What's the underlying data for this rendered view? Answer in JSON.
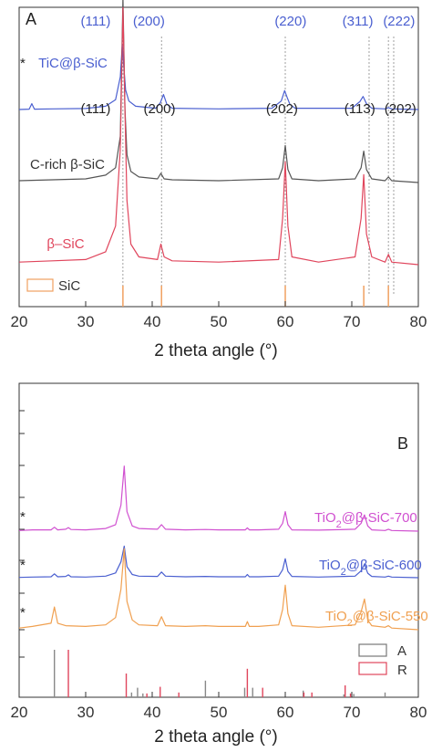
{
  "chart_data": [
    {
      "type": "line",
      "panel": "A",
      "xlabel": "2 theta angle (°)",
      "xlim": [
        20,
        80
      ],
      "xticks": [
        20,
        30,
        40,
        50,
        60,
        70,
        80
      ],
      "grid": false,
      "series": [
        {
          "name": "TiC@β-SiC",
          "color": "#4a5fd0",
          "marker": "*",
          "baseline": 0.8,
          "scale": 0.55,
          "x": [
            20,
            21.5,
            21.9,
            22.3,
            25,
            30,
            33,
            34.5,
            35.2,
            35.5,
            35.7,
            36.0,
            36.5,
            37.5,
            40.5,
            41.2,
            41.7,
            42.2,
            43,
            50,
            58,
            59.4,
            59.9,
            60.3,
            60.7,
            61.5,
            70,
            71.2,
            71.7,
            72.2,
            73,
            75,
            75.5,
            76,
            80
          ],
          "y": [
            0,
            0.005,
            0.09,
            0.005,
            0.01,
            0.015,
            0.05,
            0.15,
            0.5,
            1.0,
            0.7,
            0.3,
            0.13,
            0.05,
            0.02,
            0.1,
            0.23,
            0.08,
            0.02,
            0.01,
            0.02,
            0.13,
            0.29,
            0.18,
            0.08,
            0.02,
            0.02,
            0.12,
            0.2,
            0.09,
            0.02,
            0.01,
            0.03,
            0.01,
            0
          ]
        },
        {
          "name": "C-rich β-SiC",
          "color": "#555555",
          "baseline": 0.0,
          "scale": 2.2,
          "x": [
            20,
            25,
            30,
            33,
            34.5,
            35.2,
            35.6,
            35.9,
            36.2,
            36.8,
            38,
            40.8,
            41.3,
            41.8,
            43,
            50,
            59,
            59.6,
            60.0,
            60.4,
            61,
            65,
            70.5,
            71.4,
            71.8,
            72.2,
            73,
            75,
            75.5,
            76,
            80
          ],
          "y": [
            0.01,
            0.015,
            0.02,
            0.04,
            0.08,
            0.25,
            1.0,
            0.4,
            0.15,
            0.06,
            0.03,
            0.02,
            0.05,
            0.02,
            0.015,
            0.01,
            0.02,
            0.08,
            0.2,
            0.07,
            0.02,
            0.01,
            0.02,
            0.08,
            0.17,
            0.07,
            0.02,
            0.01,
            0.03,
            0.01,
            0
          ]
        },
        {
          "name": "β–SiC",
          "color": "#e0455c",
          "baseline": 0.0,
          "scale": 1.15,
          "x": [
            20,
            25,
            30,
            33,
            34.5,
            35.2,
            35.6,
            35.9,
            36.2,
            36.8,
            38,
            40.8,
            41.3,
            41.8,
            43,
            50,
            59,
            59.6,
            60.0,
            60.4,
            61,
            65,
            70.5,
            71.4,
            71.8,
            72.2,
            73,
            75,
            75.5,
            76,
            80
          ],
          "y": [
            0.01,
            0.015,
            0.02,
            0.05,
            0.15,
            0.45,
            1.0,
            0.6,
            0.25,
            0.08,
            0.03,
            0.02,
            0.08,
            0.03,
            0.015,
            0.01,
            0.02,
            0.18,
            0.4,
            0.15,
            0.03,
            0.01,
            0.03,
            0.18,
            0.35,
            0.12,
            0.03,
            0.01,
            0.04,
            0.01,
            0
          ]
        }
      ],
      "reference_sticks": {
        "name": "SiC",
        "color": "#f0a060",
        "x": [
          35.6,
          41.4,
          60.0,
          71.8,
          75.5
        ]
      },
      "guide_lines_x": [
        35.6,
        41.4,
        60.0,
        72.6,
        75.5,
        76.3
      ],
      "annotations": [
        {
          "text": "(111)",
          "x": 31.5,
          "row": "upper",
          "color": "#4a5fd0"
        },
        {
          "text": "(200)",
          "x": 39.5,
          "row": "upper",
          "color": "#4a5fd0"
        },
        {
          "text": "(220)",
          "x": 60.8,
          "row": "upper",
          "color": "#4a5fd0"
        },
        {
          "text": "(311)",
          "x": 70.9,
          "row": "upper",
          "color": "#4a5fd0"
        },
        {
          "text": "(222)",
          "x": 77.1,
          "row": "upper",
          "color": "#4a5fd0"
        },
        {
          "text": "(111)",
          "x": 31.5,
          "row": "lower",
          "color": "#222222"
        },
        {
          "text": "(200)",
          "x": 41.1,
          "row": "lower",
          "color": "#222222"
        },
        {
          "text": "(202)",
          "x": 59.5,
          "row": "lower",
          "color": "#222222"
        },
        {
          "text": "(113)",
          "x": 71.2,
          "row": "lower",
          "color": "#222222"
        },
        {
          "text": "(202)",
          "x": 77.3,
          "row": "lower",
          "color": "#222222"
        }
      ],
      "legend": {
        "label": "SiC",
        "position": "bottom-left"
      }
    },
    {
      "type": "line",
      "panel": "B",
      "xlabel": "2 theta angle (°)",
      "xlim": [
        20,
        80
      ],
      "xticks": [
        20,
        30,
        40,
        50,
        60,
        70,
        80
      ],
      "grid": false,
      "series": [
        {
          "name": "TiO2@β-SiC-700",
          "name_main": "TiO",
          "name_sub": "2",
          "name_rest": "@β-SiC-700",
          "color": "#d050d0",
          "marker": "*",
          "baseline": 0.58,
          "scale": 0.46,
          "x": [
            20,
            22,
            24.8,
            25.3,
            25.8,
            27,
            27.4,
            27.8,
            30,
            33,
            34.5,
            35.3,
            35.8,
            36.2,
            37,
            38,
            40.8,
            41.4,
            42,
            45,
            48,
            50,
            54,
            54.3,
            54.6,
            56,
            59,
            59.6,
            60.0,
            60.4,
            61,
            65,
            70.5,
            71.4,
            71.9,
            72.4,
            73,
            75,
            75.5,
            76,
            80
          ],
          "y": [
            0.01,
            0.02,
            0.02,
            0.06,
            0.02,
            0.03,
            0.055,
            0.025,
            0.02,
            0.04,
            0.1,
            0.4,
            1.0,
            0.3,
            0.08,
            0.04,
            0.03,
            0.1,
            0.03,
            0.02,
            0.025,
            0.02,
            0.02,
            0.05,
            0.02,
            0.02,
            0.03,
            0.12,
            0.3,
            0.1,
            0.02,
            0.015,
            0.03,
            0.12,
            0.25,
            0.08,
            0.02,
            0.01,
            0.03,
            0.01,
            0
          ]
        },
        {
          "name": "TiO2@β-SiC-600",
          "name_main": "TiO",
          "name_sub": "2",
          "name_rest": "@β-SiC-600",
          "color": "#4a5fd0",
          "marker": "*",
          "baseline": 0.26,
          "scale": 0.21,
          "x": [
            20,
            22,
            24.8,
            25.3,
            25.8,
            27,
            27.4,
            27.8,
            30,
            33,
            34.5,
            35.3,
            35.8,
            36.2,
            37,
            38,
            40.8,
            41.4,
            42,
            45,
            48,
            50,
            54,
            54.3,
            54.6,
            56,
            59,
            59.6,
            60.0,
            60.4,
            61,
            65,
            70.5,
            71.4,
            71.9,
            72.4,
            73,
            75,
            75.5,
            76,
            80
          ],
          "y": [
            0.01,
            0.02,
            0.03,
            0.12,
            0.03,
            0.04,
            0.09,
            0.03,
            0.02,
            0.05,
            0.15,
            0.5,
            1.0,
            0.35,
            0.1,
            0.05,
            0.04,
            0.18,
            0.05,
            0.03,
            0.04,
            0.03,
            0.03,
            0.1,
            0.03,
            0.03,
            0.05,
            0.25,
            0.6,
            0.2,
            0.04,
            0.02,
            0.05,
            0.22,
            0.42,
            0.14,
            0.04,
            0.02,
            0.05,
            0.02,
            0
          ]
        },
        {
          "name": "TiO2@β-SiC-550",
          "name_main": "TiO",
          "name_sub": "2",
          "name_rest": "@β-SiC-550",
          "color": "#f0a050",
          "marker": "*",
          "baseline": 0.0,
          "scale": 0.23,
          "x": [
            20,
            22,
            24.8,
            25.3,
            25.8,
            27,
            30,
            33,
            34.5,
            35.3,
            35.8,
            36.2,
            37,
            38,
            40.8,
            41.4,
            42,
            45,
            48,
            50,
            54,
            54.3,
            54.6,
            56,
            59,
            59.6,
            60.0,
            60.4,
            61,
            65,
            70.5,
            71.4,
            71.9,
            72.4,
            73,
            75,
            75.5,
            76,
            80
          ],
          "y": [
            0.02,
            0.04,
            0.08,
            0.28,
            0.08,
            0.05,
            0.04,
            0.06,
            0.15,
            0.5,
            1.0,
            0.35,
            0.12,
            0.06,
            0.05,
            0.16,
            0.05,
            0.04,
            0.05,
            0.04,
            0.04,
            0.1,
            0.04,
            0.04,
            0.06,
            0.25,
            0.55,
            0.2,
            0.05,
            0.03,
            0.06,
            0.22,
            0.38,
            0.12,
            0.05,
            0.03,
            0.05,
            0.02,
            0
          ]
        }
      ],
      "reference_sticks": [
        {
          "name": "A",
          "color": "#888888",
          "x": [
            25.3,
            36.9,
            37.8,
            38.6,
            48.0,
            53.9,
            55.1,
            62.7,
            68.8,
            70.3,
            75.0
          ],
          "h": [
            1.0,
            0.1,
            0.2,
            0.08,
            0.35,
            0.2,
            0.2,
            0.14,
            0.06,
            0.07,
            0.1
          ]
        },
        {
          "name": "R",
          "color": "#e0455c",
          "x": [
            27.4,
            36.1,
            39.2,
            41.2,
            44.0,
            54.3,
            56.6,
            62.8,
            64.0,
            69.0,
            69.8
          ],
          "h": [
            1.0,
            0.5,
            0.08,
            0.22,
            0.1,
            0.6,
            0.2,
            0.1,
            0.1,
            0.25,
            0.08
          ]
        }
      ],
      "legend": {
        "labels": [
          "A",
          "R"
        ],
        "position": "bottom-right"
      }
    }
  ]
}
